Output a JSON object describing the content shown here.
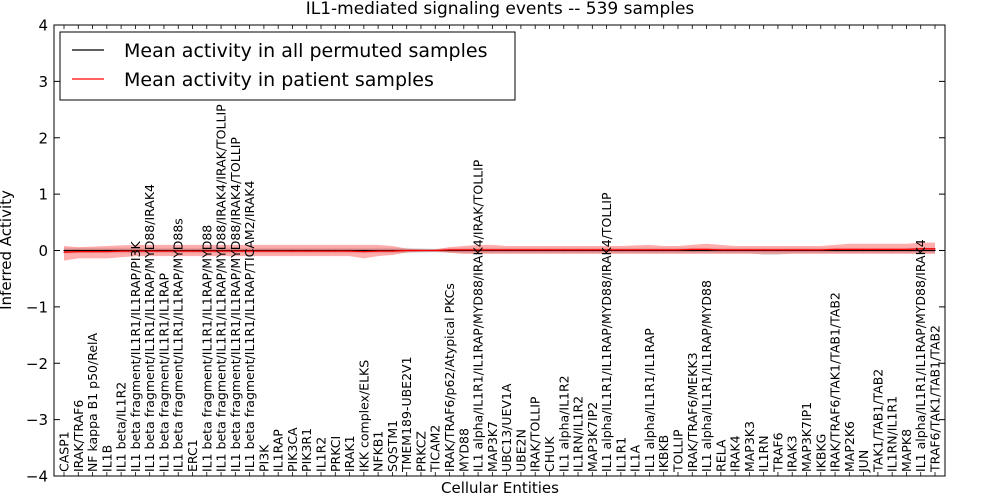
{
  "chart_data": {
    "type": "line",
    "title": "IL1-mediated signaling events -- 539 samples",
    "xlabel": "Cellular Entities",
    "ylabel": "Inferred Activity",
    "ylim": [
      -4,
      4
    ],
    "yticks": [
      -4,
      -3,
      -2,
      -1,
      0,
      1,
      2,
      3,
      4
    ],
    "grid": false,
    "legend_position": "top-left",
    "legend": [
      {
        "label": "Mean activity in all permuted samples",
        "color": "#000000"
      },
      {
        "label": "Mean activity in patient samples",
        "color": "#ff0000"
      }
    ],
    "categories": [
      "CASP1",
      "IRAK/TRAF6",
      "NF kappa B1 p50/RelA",
      "IL1B",
      "IL1 beta/IL1R2",
      "IL1 beta fragment/IL1R1/IL1RAP/PI3K",
      "IL1 beta fragment/IL1R1/IL1RAP/MYD88/IRAK4",
      "IL1 beta fragment/IL1R1/IL1RAP",
      "IL1 beta fragment/IL1R1/IL1RAP/MYD88s",
      "ERC1",
      "IL1 beta fragment/IL1R1/IL1RAP/MYD88",
      "IL1 beta fragment/IL1R1/IL1RAP/MYD88/IRAK4/IRAK/TOLLIP",
      "IL1 beta fragment/IL1R1/IL1RAP/MYD88/IRAK4/TOLLIP",
      "IL1 beta fragment/IL1R1/IL1RAP/TICAM2/IRAK4",
      "PI3K",
      "IL1RAP",
      "PIK3CA",
      "PIK3R1",
      "IL1R2",
      "PRKCI",
      "IRAK1",
      "IKK complex/ELKS",
      "NFKB1",
      "SQSTM1",
      "TMEM189-UBE2V1",
      "PRKCZ",
      "TICAM2",
      "IRAK/TRAF6/p62/Atypical PKCs",
      "MYD88",
      "IL1 alpha/IL1R1/IL1RAP/MYD88/IRAK4/IRAK/TOLLIP",
      "MAP3K7",
      "UBC13/UEV1A",
      "UBE2N",
      "IRAK/TOLLIP",
      "CHUK",
      "IL1 alpha/IL1R2",
      "IL1RN/IL1R2",
      "MAP3K7IP2",
      "IL1 alpha/IL1R1/IL1RAP/MYD88/IRAK4/TOLLIP",
      "IL1R1",
      "IL1A",
      "IL1 alpha/IL1R1/IL1RAP",
      "IKBKB",
      "TOLLIP",
      "IRAK/TRAF6/MEKK3",
      "IL1 alpha/IL1R1/IL1RAP/MYD88",
      "RELA",
      "IRAK4",
      "MAP3K3",
      "IL1RN",
      "TRAF6",
      "IRAK3",
      "MAP3K7IP1",
      "IKBKG",
      "IRAK/TRAF6/TAK1/TAB1/TAB2",
      "MAP2K6",
      "JUN",
      "TAK1/TAB1/TAB2",
      "IL1RN/IL1R1",
      "MAPK8",
      "IL1 alpha/IL1R1/IL1RAP/MYD88/IRAK4",
      "TRAF6/TAK1/TAB1/TAB2"
    ],
    "series": [
      {
        "name": "Mean activity in all permuted samples",
        "color": "#000000",
        "values": [
          0,
          0,
          0,
          0,
          0,
          0,
          0,
          0,
          0,
          0,
          0,
          0,
          0,
          0,
          0,
          0,
          0,
          0,
          0,
          0,
          0,
          0,
          0,
          0,
          0,
          0,
          0,
          0,
          0,
          0,
          0,
          0,
          0,
          0,
          0,
          0,
          0,
          0,
          0,
          0,
          0,
          0,
          0,
          0,
          0,
          0,
          0,
          0,
          0,
          0,
          0,
          0,
          0,
          0,
          0,
          0,
          0,
          0,
          0,
          0,
          0,
          0
        ],
        "lower": [
          -0.05,
          -0.05,
          -0.05,
          -0.05,
          -0.05,
          -0.05,
          -0.05,
          -0.05,
          -0.05,
          -0.05,
          -0.05,
          -0.05,
          -0.05,
          -0.05,
          -0.05,
          -0.05,
          -0.05,
          -0.05,
          -0.05,
          -0.05,
          -0.05,
          -0.05,
          -0.05,
          -0.05,
          -0.05,
          -0.04,
          -0.03,
          -0.04,
          -0.05,
          -0.05,
          -0.05,
          -0.05,
          -0.05,
          -0.05,
          -0.05,
          -0.05,
          -0.05,
          -0.05,
          -0.05,
          -0.05,
          -0.05,
          -0.05,
          -0.05,
          -0.05,
          -0.05,
          -0.05,
          -0.05,
          -0.05,
          -0.05,
          -0.08,
          -0.08,
          -0.05,
          -0.05,
          -0.05,
          -0.05,
          -0.05,
          -0.05,
          -0.05,
          -0.05,
          -0.05,
          -0.05,
          -0.05
        ],
        "upper": [
          0.05,
          0.05,
          0.05,
          0.05,
          0.05,
          0.05,
          0.05,
          0.05,
          0.05,
          0.05,
          0.05,
          0.05,
          0.05,
          0.05,
          0.05,
          0.05,
          0.05,
          0.05,
          0.05,
          0.05,
          0.05,
          0.05,
          0.05,
          0.05,
          0.05,
          0.04,
          0.03,
          0.04,
          0.05,
          0.05,
          0.05,
          0.05,
          0.05,
          0.05,
          0.05,
          0.05,
          0.05,
          0.05,
          0.05,
          0.05,
          0.05,
          0.05,
          0.05,
          0.05,
          0.05,
          0.05,
          0.05,
          0.05,
          0.05,
          0.05,
          0.05,
          0.05,
          0.05,
          0.05,
          0.05,
          0.05,
          0.05,
          0.05,
          0.05,
          0.05,
          0.05,
          0.05
        ]
      },
      {
        "name": "Mean activity in patient samples",
        "color": "#ff0000",
        "values": [
          -0.03,
          -0.02,
          -0.02,
          -0.02,
          -0.01,
          -0.01,
          -0.01,
          -0.01,
          -0.01,
          -0.01,
          -0.01,
          -0.01,
          -0.01,
          -0.01,
          -0.01,
          -0.01,
          -0.01,
          -0.01,
          -0.01,
          -0.01,
          -0.01,
          -0.02,
          -0.01,
          -0.01,
          0,
          0,
          0,
          0.01,
          0.01,
          0.01,
          0.01,
          0.01,
          0.01,
          0.01,
          0.01,
          0.01,
          0.01,
          0.01,
          0.01,
          0.01,
          0.01,
          0.01,
          0.01,
          0.01,
          0.02,
          0.02,
          0.01,
          0.01,
          0.01,
          0.01,
          0.01,
          0.01,
          0.01,
          0.01,
          0.02,
          0.02,
          0.02,
          0.02,
          0.02,
          0.02,
          0.03,
          0.03
        ],
        "lower": [
          -0.18,
          -0.14,
          -0.14,
          -0.14,
          -0.12,
          -0.1,
          -0.1,
          -0.1,
          -0.1,
          -0.1,
          -0.1,
          -0.1,
          -0.1,
          -0.1,
          -0.1,
          -0.1,
          -0.1,
          -0.1,
          -0.1,
          -0.1,
          -0.1,
          -0.14,
          -0.1,
          -0.08,
          -0.03,
          -0.02,
          -0.02,
          -0.04,
          -0.06,
          -0.06,
          -0.06,
          -0.06,
          -0.06,
          -0.06,
          -0.06,
          -0.06,
          -0.06,
          -0.06,
          -0.06,
          -0.06,
          -0.06,
          -0.06,
          -0.06,
          -0.06,
          -0.06,
          -0.06,
          -0.06,
          -0.06,
          -0.06,
          -0.06,
          -0.06,
          -0.06,
          -0.06,
          -0.06,
          -0.06,
          -0.06,
          -0.06,
          -0.06,
          -0.06,
          -0.06,
          -0.06,
          -0.06
        ],
        "upper": [
          0.08,
          0.06,
          0.07,
          0.08,
          0.09,
          0.1,
          0.1,
          0.1,
          0.1,
          0.1,
          0.1,
          0.1,
          0.1,
          0.1,
          0.1,
          0.1,
          0.1,
          0.1,
          0.1,
          0.1,
          0.1,
          0.1,
          0.1,
          0.08,
          0.03,
          0.02,
          0.02,
          0.06,
          0.08,
          0.1,
          0.1,
          0.08,
          0.08,
          0.08,
          0.08,
          0.08,
          0.08,
          0.08,
          0.08,
          0.08,
          0.09,
          0.1,
          0.08,
          0.08,
          0.1,
          0.12,
          0.1,
          0.08,
          0.08,
          0.08,
          0.08,
          0.08,
          0.08,
          0.08,
          0.1,
          0.12,
          0.12,
          0.12,
          0.12,
          0.12,
          0.14,
          0.14
        ]
      }
    ]
  }
}
